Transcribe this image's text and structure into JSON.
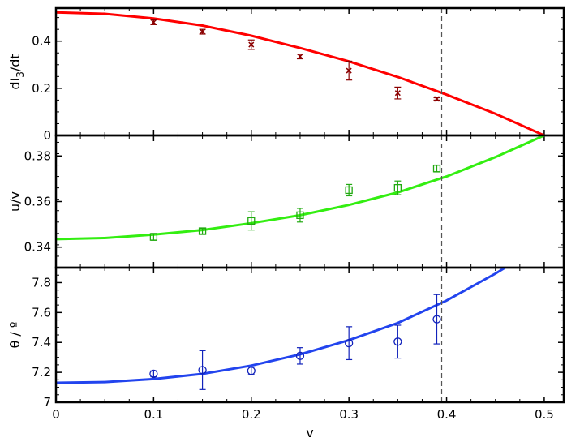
{
  "chart_data": [
    {
      "type": "scatter",
      "panel": "top",
      "ylabel_main": "dI",
      "ylabel_sub": "3",
      "ylabel_tail": "/dt",
      "xlim": [
        0,
        0.52
      ],
      "ylim": [
        0,
        0.54
      ],
      "yticks": [
        0,
        0.2,
        0.4
      ],
      "ytick_labels": [
        "0",
        "0.2",
        "0.4"
      ],
      "grid": false,
      "series": [
        {
          "kind": "curve",
          "color": "#ff0000",
          "x": [
            0,
            0.05,
            0.1,
            0.15,
            0.2,
            0.25,
            0.3,
            0.35,
            0.4,
            0.45,
            0.5
          ],
          "y": [
            0.522,
            0.516,
            0.496,
            0.466,
            0.423,
            0.371,
            0.314,
            0.248,
            0.173,
            0.092,
            0.0
          ]
        },
        {
          "kind": "points",
          "marker": "x",
          "color": "#8b0000",
          "x": [
            0.1,
            0.15,
            0.2,
            0.25,
            0.3,
            0.35,
            0.39
          ],
          "y": [
            0.48,
            0.44,
            0.385,
            0.335,
            0.275,
            0.18,
            0.155
          ],
          "err": [
            0.01,
            0.01,
            0.02,
            0.01,
            0.04,
            0.025,
            0.005
          ]
        }
      ]
    },
    {
      "type": "scatter",
      "panel": "middle",
      "ylabel": "u/v",
      "xlim": [
        0,
        0.52
      ],
      "ylim": [
        0.331,
        0.389
      ],
      "yticks": [
        0.34,
        0.36,
        0.38
      ],
      "ytick_labels": [
        "0.34",
        "0.36",
        "0.38"
      ],
      "grid": false,
      "series": [
        {
          "kind": "curve",
          "color": "#33ee11",
          "x": [
            0,
            0.05,
            0.1,
            0.15,
            0.2,
            0.25,
            0.3,
            0.35,
            0.4,
            0.45,
            0.5
          ],
          "y": [
            0.3435,
            0.344,
            0.3455,
            0.3475,
            0.3505,
            0.354,
            0.3585,
            0.364,
            0.371,
            0.3795,
            0.389
          ]
        },
        {
          "kind": "points",
          "marker": "square",
          "color": "#22aa11",
          "x": [
            0.1,
            0.15,
            0.2,
            0.25,
            0.3,
            0.35,
            0.39
          ],
          "y": [
            0.3445,
            0.347,
            0.3515,
            0.354,
            0.365,
            0.366,
            0.3745
          ],
          "err": [
            0.0015,
            0.0012,
            0.004,
            0.003,
            0.0025,
            0.003,
            0.0015
          ]
        }
      ]
    },
    {
      "type": "scatter",
      "panel": "bottom",
      "ylabel": "θ / º",
      "xlabel": "v",
      "xlim": [
        0,
        0.52
      ],
      "ylim": [
        7.0,
        7.9
      ],
      "xticks": [
        0,
        0.1,
        0.2,
        0.3,
        0.4,
        0.5
      ],
      "xtick_labels": [
        "0",
        "0.1",
        "0.2",
        "0.3",
        "0.4",
        "0.5"
      ],
      "yticks": [
        7.0,
        7.2,
        7.4,
        7.6,
        7.8
      ],
      "ytick_labels": [
        "7",
        "7.2",
        "7.4",
        "7.6",
        "7.8"
      ],
      "grid": false,
      "series": [
        {
          "kind": "curve",
          "color": "#2244ee",
          "x": [
            0,
            0.05,
            0.1,
            0.15,
            0.2,
            0.25,
            0.3,
            0.35,
            0.4,
            0.45,
            0.46
          ],
          "y": [
            7.13,
            7.135,
            7.155,
            7.19,
            7.245,
            7.32,
            7.415,
            7.53,
            7.68,
            7.86,
            7.9
          ]
        },
        {
          "kind": "points",
          "marker": "circle",
          "color": "#1122bb",
          "x": [
            0.1,
            0.15,
            0.2,
            0.25,
            0.3,
            0.35,
            0.39
          ],
          "y": [
            7.19,
            7.215,
            7.21,
            7.31,
            7.395,
            7.405,
            7.555
          ],
          "err": [
            0.02,
            0.13,
            0.025,
            0.055,
            0.11,
            0.11,
            0.165
          ]
        }
      ]
    }
  ],
  "reference_line": {
    "x": 0.395,
    "style": "dashed",
    "color": "#555555"
  }
}
